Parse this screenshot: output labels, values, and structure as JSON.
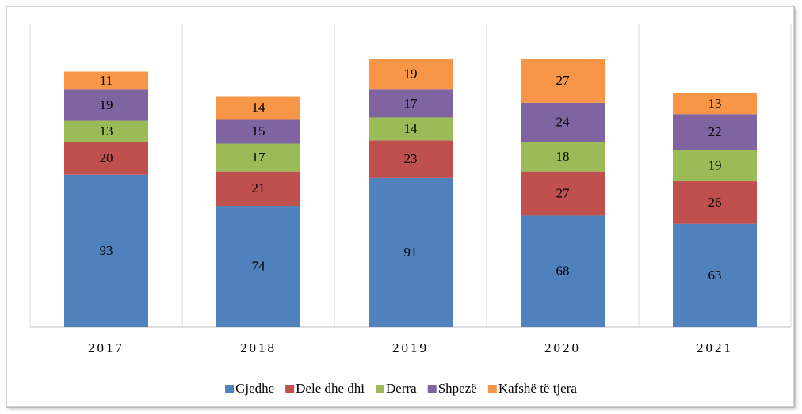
{
  "chart_data": {
    "type": "stacked_bar",
    "categories": [
      "2017",
      "2018",
      "2019",
      "2020",
      "2021"
    ],
    "series": [
      {
        "name": "Gjedhe",
        "color": "#4f81bd",
        "values": [
          93,
          74,
          91,
          68,
          63
        ]
      },
      {
        "name": "Dele dhe dhi",
        "color": "#c0504d",
        "values": [
          20,
          21,
          23,
          27,
          26
        ]
      },
      {
        "name": "Derra",
        "color": "#9bbb59",
        "values": [
          13,
          17,
          14,
          18,
          19
        ]
      },
      {
        "name": "Shpezë",
        "color": "#8064a2",
        "values": [
          19,
          15,
          17,
          24,
          22
        ]
      },
      {
        "name": "Kafshë të tjera",
        "color": "#f79646",
        "values": [
          11,
          14,
          19,
          27,
          13
        ]
      }
    ],
    "legend": "bottom"
  }
}
